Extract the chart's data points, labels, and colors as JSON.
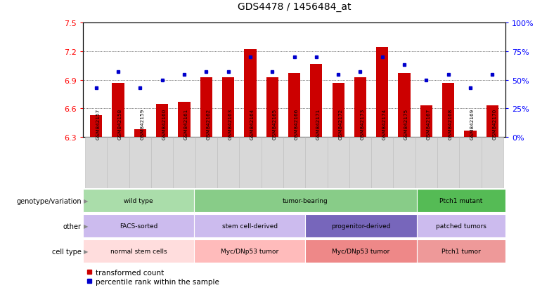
{
  "title": "GDS4478 / 1456484_at",
  "samples": [
    "GSM842157",
    "GSM842158",
    "GSM842159",
    "GSM842160",
    "GSM842161",
    "GSM842162",
    "GSM842163",
    "GSM842164",
    "GSM842165",
    "GSM842166",
    "GSM842171",
    "GSM842172",
    "GSM842173",
    "GSM842174",
    "GSM842175",
    "GSM842167",
    "GSM842168",
    "GSM842169",
    "GSM842170"
  ],
  "bar_values": [
    6.53,
    6.87,
    6.38,
    6.65,
    6.67,
    6.93,
    6.93,
    7.22,
    6.93,
    6.97,
    7.07,
    6.87,
    6.93,
    7.24,
    6.97,
    6.63,
    6.87,
    6.37,
    6.63
  ],
  "dot_values": [
    43,
    57,
    43,
    50,
    55,
    57,
    57,
    70,
    57,
    70,
    70,
    55,
    57,
    70,
    63,
    50,
    55,
    43,
    55
  ],
  "ymin": 6.3,
  "ymax": 7.5,
  "yticks": [
    6.3,
    6.6,
    6.9,
    7.2,
    7.5
  ],
  "right_yticks": [
    0,
    25,
    50,
    75,
    100
  ],
  "right_yticklabels": [
    "0%",
    "25%",
    "50%",
    "75%",
    "100%"
  ],
  "bar_color": "#cc0000",
  "dot_color": "#0000cc",
  "xtick_bg": "#d0d0d0",
  "annotation_rows": [
    {
      "label": "genotype/variation",
      "groups": [
        {
          "text": "wild type",
          "start": 0,
          "end": 5,
          "color": "#aaddaa"
        },
        {
          "text": "tumor-bearing",
          "start": 5,
          "end": 15,
          "color": "#88cc88"
        },
        {
          "text": "Ptch1 mutant",
          "start": 15,
          "end": 19,
          "color": "#55bb55"
        }
      ]
    },
    {
      "label": "other",
      "groups": [
        {
          "text": "FACS-sorted",
          "start": 0,
          "end": 5,
          "color": "#ccbbee"
        },
        {
          "text": "stem cell-derived",
          "start": 5,
          "end": 10,
          "color": "#ccbbee"
        },
        {
          "text": "progenitor-derived",
          "start": 10,
          "end": 15,
          "color": "#7766bb"
        },
        {
          "text": "patched tumors",
          "start": 15,
          "end": 19,
          "color": "#ccbbee"
        }
      ]
    },
    {
      "label": "cell type",
      "groups": [
        {
          "text": "normal stem cells",
          "start": 0,
          "end": 5,
          "color": "#ffdddd"
        },
        {
          "text": "Myc/DNp53 tumor",
          "start": 5,
          "end": 10,
          "color": "#ffbbbb"
        },
        {
          "text": "Myc/DNp53 tumor",
          "start": 10,
          "end": 15,
          "color": "#ee8888"
        },
        {
          "text": "Ptch1 tumor",
          "start": 15,
          "end": 19,
          "color": "#ee9999"
        }
      ]
    }
  ],
  "legend_items": [
    {
      "label": "transformed count",
      "color": "#cc0000"
    },
    {
      "label": "percentile rank within the sample",
      "color": "#0000cc"
    }
  ]
}
